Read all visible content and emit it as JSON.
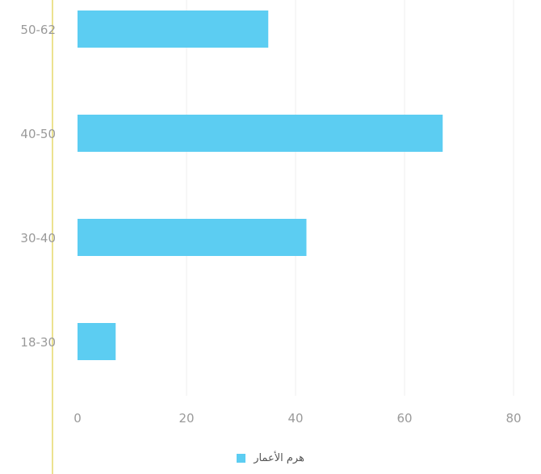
{
  "chart_data": {
    "type": "bar",
    "orientation": "horizontal",
    "categories": [
      "50-62",
      "40-50",
      "30-40",
      "18-30"
    ],
    "series": [
      {
        "name": "هرم الأعمار",
        "values": [
          35,
          67,
          42,
          7
        ]
      }
    ],
    "xlim": [
      0,
      80
    ],
    "x_ticks": [
      "0",
      "20",
      "40",
      "60",
      "80"
    ],
    "grid": "vertical",
    "legend_position": "bottom",
    "colors": {
      "bar": "#5ccdf2",
      "axis": "#e6d96b",
      "tick_text": "#9a9a9a",
      "grid": "#efefef"
    }
  }
}
